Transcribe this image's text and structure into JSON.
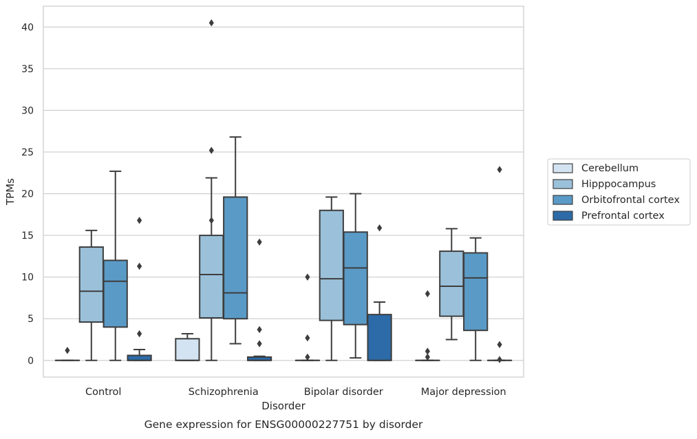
{
  "chart_data": {
    "type": "box",
    "title": "Gene expression for ENSG00000227751 by disorder",
    "xlabel": "Disorder",
    "ylabel": "TPMs",
    "ylim": [
      -2,
      42.5
    ],
    "yticks": [
      0,
      5,
      10,
      15,
      20,
      25,
      30,
      35,
      40
    ],
    "grid": "horizontal",
    "legend_position": "right",
    "categories": [
      "Control",
      "Schizophrenia",
      "Bipolar disorder",
      "Major depression"
    ],
    "series": [
      {
        "name": "Cerebellum",
        "color": "#d4e3f1",
        "boxes": [
          {
            "category": "Control",
            "whisker_low": 0,
            "q1": 0,
            "median": 0,
            "q3": 0,
            "whisker_high": 0,
            "outliers": [
              1.2
            ]
          },
          {
            "category": "Schizophrenia",
            "whisker_low": 0,
            "q1": 0,
            "median": 0,
            "q3": 2.6,
            "whisker_high": 3.2,
            "outliers": []
          },
          {
            "category": "Bipolar disorder",
            "whisker_low": 0,
            "q1": 0,
            "median": 0,
            "q3": 0,
            "whisker_high": 0,
            "outliers": [
              10.0,
              2.7,
              0.4
            ]
          },
          {
            "category": "Major depression",
            "whisker_low": 0,
            "q1": 0,
            "median": 0,
            "q3": 0,
            "whisker_high": 0,
            "outliers": [
              8.0,
              1.1,
              0.4
            ]
          }
        ]
      },
      {
        "name": "Hipppocampus",
        "color": "#9bc1da",
        "boxes": [
          {
            "category": "Control",
            "whisker_low": 0,
            "q1": 4.6,
            "median": 8.3,
            "q3": 13.6,
            "whisker_high": 15.6,
            "outliers": []
          },
          {
            "category": "Schizophrenia",
            "whisker_low": 0,
            "q1": 5.1,
            "median": 10.3,
            "q3": 15.0,
            "whisker_high": 21.9,
            "outliers": [
              40.5,
              25.2,
              16.8
            ]
          },
          {
            "category": "Bipolar disorder",
            "whisker_low": 0,
            "q1": 4.8,
            "median": 9.8,
            "q3": 18.0,
            "whisker_high": 19.6,
            "outliers": []
          },
          {
            "category": "Major depression",
            "whisker_low": 2.5,
            "q1": 5.3,
            "median": 8.9,
            "q3": 13.1,
            "whisker_high": 15.8,
            "outliers": []
          }
        ]
      },
      {
        "name": "Orbitofrontal cortex",
        "color": "#5a9ac6",
        "boxes": [
          {
            "category": "Control",
            "whisker_low": 0,
            "q1": 4.0,
            "median": 9.5,
            "q3": 12.0,
            "whisker_high": 22.7,
            "outliers": []
          },
          {
            "category": "Schizophrenia",
            "whisker_low": 2.0,
            "q1": 5.0,
            "median": 8.1,
            "q3": 19.6,
            "whisker_high": 26.8,
            "outliers": []
          },
          {
            "category": "Bipolar disorder",
            "whisker_low": 0.3,
            "q1": 4.3,
            "median": 11.1,
            "q3": 15.4,
            "whisker_high": 20.0,
            "outliers": []
          },
          {
            "category": "Major depression",
            "whisker_low": 0,
            "q1": 3.6,
            "median": 9.9,
            "q3": 12.9,
            "whisker_high": 14.7,
            "outliers": []
          }
        ]
      },
      {
        "name": "Prefrontal cortex",
        "color": "#2c6ba8",
        "boxes": [
          {
            "category": "Control",
            "whisker_low": 0,
            "q1": 0,
            "median": 0,
            "q3": 0.6,
            "whisker_high": 1.3,
            "outliers": [
              16.8,
              11.3,
              3.2
            ]
          },
          {
            "category": "Schizophrenia",
            "whisker_low": 0,
            "q1": 0,
            "median": 0,
            "q3": 0.4,
            "whisker_high": 0.5,
            "outliers": [
              14.2,
              3.7,
              2.0
            ]
          },
          {
            "category": "Bipolar disorder",
            "whisker_low": 0,
            "q1": 0,
            "median": 0,
            "q3": 5.5,
            "whisker_high": 7.0,
            "outliers": [
              15.9
            ]
          },
          {
            "category": "Major depression",
            "whisker_low": 0,
            "q1": 0,
            "median": 0,
            "q3": 0,
            "whisker_high": 0,
            "outliers": [
              22.9,
              1.9,
              0.1
            ]
          }
        ]
      }
    ]
  }
}
